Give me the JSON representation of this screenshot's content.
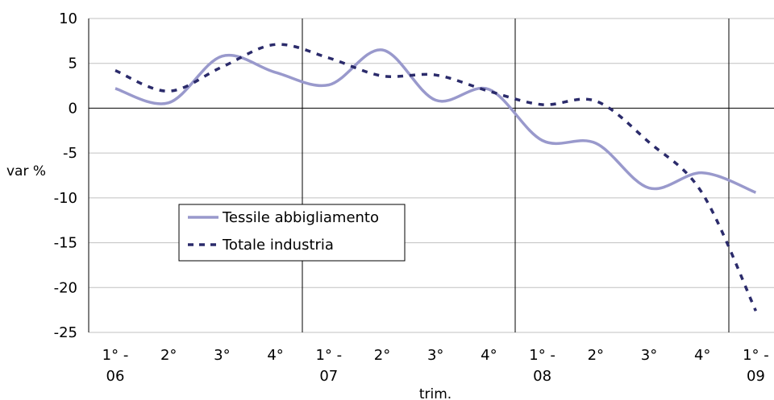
{
  "chart_data": {
    "type": "line",
    "title": "",
    "ylabel": "var %",
    "xlabel": "trim.",
    "ylim": [
      -25,
      10
    ],
    "yticks": [
      10,
      5,
      0,
      -5,
      -10,
      -15,
      -20,
      -25
    ],
    "grid": true,
    "legend_position": "center-left",
    "categories": [
      [
        "1° -",
        "06"
      ],
      [
        "2°",
        ""
      ],
      [
        "3°",
        ""
      ],
      [
        "4°",
        ""
      ],
      [
        "1° -",
        "07"
      ],
      [
        "2°",
        ""
      ],
      [
        "3°",
        ""
      ],
      [
        "4°",
        ""
      ],
      [
        "1° -",
        "08"
      ],
      [
        "2°",
        ""
      ],
      [
        "3°",
        ""
      ],
      [
        "4°",
        ""
      ],
      [
        "1° -",
        "09"
      ]
    ],
    "series": [
      {
        "name": "Tessile abbigliamento",
        "color": "#9999cc",
        "style": "solid",
        "values": [
          2.2,
          0.6,
          5.8,
          4.0,
          2.6,
          6.5,
          0.9,
          2.1,
          -3.6,
          -3.9,
          -8.9,
          -7.2,
          -9.4
        ]
      },
      {
        "name": "Totale industria",
        "color": "#2b2b6b",
        "style": "dashed",
        "values": [
          4.2,
          1.9,
          4.6,
          7.1,
          5.6,
          3.6,
          3.7,
          1.9,
          0.4,
          0.8,
          -3.8,
          -9.5,
          -22.6
        ]
      }
    ]
  }
}
